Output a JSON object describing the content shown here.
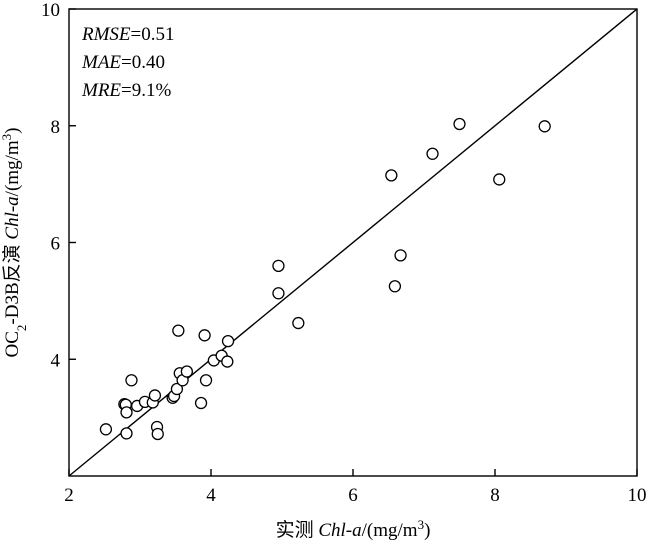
{
  "chart_data": {
    "type": "scatter",
    "xlabel_parts": [
      {
        "text": "实测 ",
        "italic": false
      },
      {
        "text": "Chl-a",
        "italic": true
      },
      {
        "text": "/(mg/m",
        "italic": false
      },
      {
        "text": "3",
        "italic": false,
        "sup": true
      },
      {
        "text": ")",
        "italic": false
      }
    ],
    "ylabel_parts": [
      {
        "text": "OC",
        "italic": false
      },
      {
        "text": "2",
        "italic": false,
        "sub": true
      },
      {
        "text": "-D3B反演 ",
        "italic": false
      },
      {
        "text": "Chl-a",
        "italic": true
      },
      {
        "text": "/(mg/m",
        "italic": false
      },
      {
        "text": "3",
        "italic": false,
        "sup": true
      },
      {
        "text": ")",
        "italic": false
      }
    ],
    "xlim": [
      2,
      10
    ],
    "ylim": [
      2,
      10
    ],
    "xticks": [
      2,
      4,
      6,
      8,
      10
    ],
    "yticks": [
      4,
      6,
      8,
      10
    ],
    "reference_line": "1:1",
    "grid": false,
    "annotations": [
      {
        "name": "RMSE",
        "value": "=0.51"
      },
      {
        "name": "MAE",
        "value": "=0.40"
      },
      {
        "name": "MRE",
        "value": "=9.1%"
      }
    ],
    "points": [
      {
        "x": 2.52,
        "y": 2.8
      },
      {
        "x": 2.78,
        "y": 3.23
      },
      {
        "x": 2.8,
        "y": 3.22
      },
      {
        "x": 2.81,
        "y": 3.09
      },
      {
        "x": 2.81,
        "y": 2.73
      },
      {
        "x": 2.88,
        "y": 3.64
      },
      {
        "x": 2.96,
        "y": 3.2
      },
      {
        "x": 3.07,
        "y": 3.27
      },
      {
        "x": 3.18,
        "y": 3.26
      },
      {
        "x": 3.21,
        "y": 3.38
      },
      {
        "x": 3.24,
        "y": 2.84
      },
      {
        "x": 3.25,
        "y": 2.72
      },
      {
        "x": 3.46,
        "y": 3.34
      },
      {
        "x": 3.48,
        "y": 3.37
      },
      {
        "x": 3.52,
        "y": 3.49
      },
      {
        "x": 3.54,
        "y": 4.49
      },
      {
        "x": 3.56,
        "y": 3.76
      },
      {
        "x": 3.6,
        "y": 3.64
      },
      {
        "x": 3.66,
        "y": 3.79
      },
      {
        "x": 3.86,
        "y": 3.25
      },
      {
        "x": 3.91,
        "y": 4.41
      },
      {
        "x": 3.93,
        "y": 3.64
      },
      {
        "x": 4.04,
        "y": 3.98
      },
      {
        "x": 4.15,
        "y": 4.06
      },
      {
        "x": 4.23,
        "y": 3.96
      },
      {
        "x": 4.24,
        "y": 4.31
      },
      {
        "x": 4.95,
        "y": 5.6
      },
      {
        "x": 4.95,
        "y": 5.13
      },
      {
        "x": 5.23,
        "y": 4.62
      },
      {
        "x": 6.54,
        "y": 7.15
      },
      {
        "x": 6.59,
        "y": 5.25
      },
      {
        "x": 6.67,
        "y": 5.78
      },
      {
        "x": 7.12,
        "y": 7.52
      },
      {
        "x": 7.5,
        "y": 8.03
      },
      {
        "x": 8.06,
        "y": 7.08
      },
      {
        "x": 8.7,
        "y": 7.99
      }
    ]
  }
}
